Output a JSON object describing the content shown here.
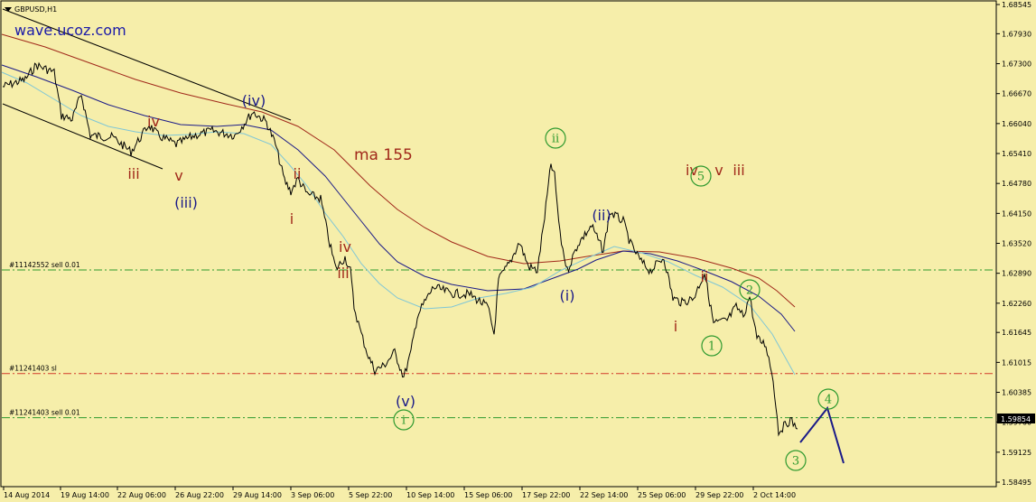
{
  "symbol": "GBPUSD,H1",
  "watermark": "wave.ucoz.com",
  "current_price": "1.59854",
  "y_ticks": [
    "1.68545",
    "1.67930",
    "1.67300",
    "1.66670",
    "1.66040",
    "1.65410",
    "1.64780",
    "1.64150",
    "1.63520",
    "1.62890",
    "1.62260",
    "1.61645",
    "1.61015",
    "1.60385",
    "1.59760",
    "1.59125",
    "1.58495"
  ],
  "x_ticks": [
    "14 Aug 2014",
    "19 Aug 14:00",
    "22 Aug 06:00",
    "26 Aug 22:00",
    "29 Aug 14:00",
    "3 Sep 06:00",
    "5 Sep 22:00",
    "10 Sep 14:00",
    "15 Sep 06:00",
    "17 Sep 22:00",
    "22 Sep 14:00",
    "25 Sep 06:00",
    "29 Sep 22:00",
    "2 Oct 14:00"
  ],
  "order_lines": [
    {
      "label": "#11142552 sell 0.01",
      "price": 1.6296,
      "color": "#2f9a2f"
    },
    {
      "label": "#11241403 sl",
      "price": 1.6078,
      "color": "#d23a2a"
    },
    {
      "label": "#11241403 sell 0.01",
      "price": 1.5985,
      "color": "#2f9a2f"
    }
  ],
  "ma_label": "ma 155",
  "wave_labels": [
    {
      "text": "(iv)",
      "color": "#1a1a88",
      "circled": false
    },
    {
      "text": "iv",
      "color": "#a0281a",
      "circled": false
    },
    {
      "text": "iii",
      "color": "#a0281a",
      "circled": false
    },
    {
      "text": "v",
      "color": "#a0281a",
      "circled": false
    },
    {
      "text": "(iii)",
      "color": "#1a1a88",
      "circled": false
    },
    {
      "text": "ii",
      "color": "#a0281a",
      "circled": false
    },
    {
      "text": "i",
      "color": "#a0281a",
      "circled": false
    },
    {
      "text": "iv",
      "color": "#a0281a",
      "circled": false
    },
    {
      "text": "iii",
      "color": "#a0281a",
      "circled": false
    },
    {
      "text": "(v)",
      "color": "#1a1a88",
      "circled": false
    },
    {
      "text": "i",
      "color": "#2f9a2f",
      "circled": true
    },
    {
      "text": "ii",
      "color": "#2f9a2f",
      "circled": true
    },
    {
      "text": "(i)",
      "color": "#1a1a88",
      "circled": false
    },
    {
      "text": "(ii)",
      "color": "#1a1a88",
      "circled": false
    },
    {
      "text": "iv",
      "color": "#a0281a",
      "circled": false
    },
    {
      "text": "v",
      "color": "#a0281a",
      "circled": false
    },
    {
      "text": "iii",
      "color": "#a0281a",
      "circled": false
    },
    {
      "text": "5",
      "color": "#2f9a2f",
      "circled": true
    },
    {
      "text": "ii",
      "color": "#a0281a",
      "circled": false
    },
    {
      "text": "i",
      "color": "#a0281a",
      "circled": false
    },
    {
      "text": "1",
      "color": "#2f9a2f",
      "circled": true
    },
    {
      "text": "2",
      "color": "#2f9a2f",
      "circled": true
    },
    {
      "text": "4",
      "color": "#2f9a2f",
      "circled": true
    },
    {
      "text": "3",
      "color": "#2f9a2f",
      "circled": true
    }
  ],
  "colors": {
    "background": "#f6eeaa",
    "price": "#000000",
    "ma_long": "#a0281a",
    "ma_mid": "#1a1a88",
    "ma_short": "#7fc6d6",
    "projection": "#1a1a88"
  },
  "chart_data": {
    "type": "line",
    "title": "GBPUSD,H1",
    "ylim": [
      1.58495,
      1.68545
    ],
    "x": [
      "14 Aug 2014",
      "19 Aug 14:00",
      "22 Aug 06:00",
      "26 Aug 22:00",
      "29 Aug 14:00",
      "3 Sep 06:00",
      "5 Sep 22:00",
      "10 Sep 14:00",
      "15 Sep 06:00",
      "17 Sep 22:00",
      "22 Sep 14:00",
      "25 Sep 06:00",
      "29 Sep 22:00",
      "2 Oct 14:00"
    ],
    "series": [
      {
        "name": "GBPUSD,H1",
        "values": [
          1.6695,
          1.656,
          1.657,
          1.658,
          1.66,
          1.645,
          1.609,
          1.625,
          1.625,
          1.629,
          1.638,
          1.623,
          1.618,
          1.597
        ]
      },
      {
        "name": "ma 155",
        "values": [
          1.677,
          1.671,
          1.666,
          1.663,
          1.662,
          1.656,
          1.642,
          1.635,
          1.631,
          1.63,
          1.632,
          1.632,
          1.629,
          1.623
        ]
      }
    ],
    "grid": false
  }
}
